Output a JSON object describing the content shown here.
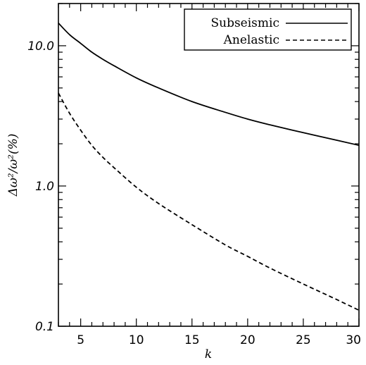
{
  "chart_data": {
    "type": "line",
    "title": "",
    "xlabel": "k",
    "ylabel": "Δω²/ω²(%)",
    "xlim": [
      3,
      30
    ],
    "ylim": [
      0.1,
      20
    ],
    "yscale": "log",
    "grid": false,
    "legend_position": "top-right",
    "x_ticks": [
      5,
      10,
      15,
      20,
      25,
      30
    ],
    "x_tick_labels": [
      "5",
      "10",
      "15",
      "20",
      "25",
      "30"
    ],
    "y_major_ticks": [
      0.1,
      1.0,
      10.0
    ],
    "y_major_tick_labels": [
      "0.1",
      "1.0",
      "10.0"
    ],
    "series": [
      {
        "name": "Subseismic",
        "style": "solid",
        "color": "#000000",
        "x": [
          3,
          4,
          5,
          6,
          7,
          8,
          10,
          12,
          15,
          18,
          20,
          22,
          25,
          28,
          30
        ],
        "y": [
          14.5,
          12.0,
          10.4,
          9.0,
          8.0,
          7.2,
          5.9,
          5.0,
          4.0,
          3.35,
          3.0,
          2.73,
          2.4,
          2.12,
          1.95
        ]
      },
      {
        "name": "Anelastic",
        "style": "dashed",
        "color": "#000000",
        "x": [
          3,
          4,
          5,
          6,
          7,
          8,
          10,
          12,
          15,
          18,
          20,
          22,
          25,
          28,
          30
        ],
        "y": [
          4.6,
          3.3,
          2.5,
          1.95,
          1.6,
          1.35,
          0.98,
          0.75,
          0.53,
          0.38,
          0.315,
          0.26,
          0.2,
          0.155,
          0.13
        ]
      }
    ]
  }
}
